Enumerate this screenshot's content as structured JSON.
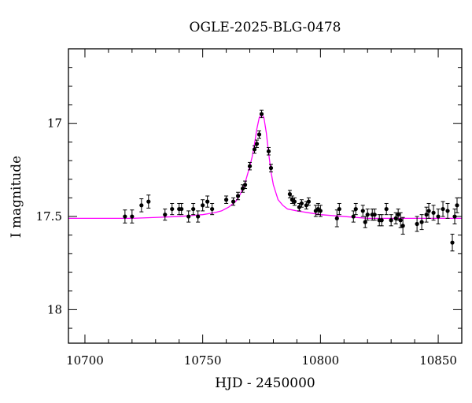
{
  "chart_data": {
    "type": "scatter",
    "title": "OGLE-2025-BLG-0478",
    "xlabel": "HJD - 2450000",
    "ylabel": "I magnitude",
    "xlim": [
      10693,
      10860
    ],
    "ylim": [
      18.18,
      16.6
    ],
    "y_inverted": true,
    "grid": false,
    "x_ticks": [
      10700,
      10750,
      10800,
      10850
    ],
    "y_ticks": [
      17,
      17.5,
      18
    ],
    "colors": {
      "points": "#000000",
      "model": "#ff00ff",
      "frame": "#000000"
    },
    "model": {
      "name": "",
      "x": [
        10693,
        10700,
        10710,
        10720,
        10730,
        10740,
        10745,
        10750,
        10755,
        10758,
        10761,
        10764,
        10766,
        10768,
        10770,
        10771,
        10772,
        10773,
        10774,
        10775,
        10776,
        10777,
        10778,
        10779,
        10780,
        10782,
        10784,
        10786,
        10790,
        10795,
        10800,
        10810,
        10820,
        10830,
        10840,
        10850,
        10860
      ],
      "y": [
        17.51,
        17.51,
        17.51,
        17.51,
        17.505,
        17.5,
        17.495,
        17.49,
        17.48,
        17.47,
        17.45,
        17.42,
        17.38,
        17.32,
        17.23,
        17.18,
        17.11,
        17.03,
        16.97,
        16.95,
        16.97,
        17.05,
        17.16,
        17.26,
        17.33,
        17.41,
        17.44,
        17.46,
        17.47,
        17.48,
        17.49,
        17.5,
        17.51,
        17.51,
        17.51,
        17.51,
        17.51
      ]
    },
    "series": [
      {
        "name": "",
        "x": [
          10717,
          10720,
          10724,
          10727,
          10734,
          10737,
          10740,
          10741,
          10744,
          10746,
          10748,
          10750,
          10752,
          10754,
          10760,
          10763,
          10765,
          10767,
          10768,
          10770,
          10772,
          10773,
          10774,
          10775,
          10778,
          10779,
          10787,
          10788,
          10789,
          10791,
          10792,
          10794,
          10795,
          10798,
          10799,
          10800,
          10807,
          10808,
          10814,
          10815,
          10818,
          10819,
          10820,
          10822,
          10823,
          10825,
          10826,
          10828,
          10830,
          10832,
          10833,
          10834,
          10835,
          10841,
          10843,
          10845,
          10846,
          10848,
          10850,
          10852,
          10854,
          10856,
          10857,
          10858
        ],
        "y": [
          17.5,
          17.5,
          17.44,
          17.42,
          17.49,
          17.46,
          17.46,
          17.46,
          17.5,
          17.46,
          17.5,
          17.44,
          17.42,
          17.46,
          17.41,
          17.42,
          17.39,
          17.35,
          17.33,
          17.23,
          17.14,
          17.11,
          17.06,
          16.95,
          17.15,
          17.24,
          17.38,
          17.41,
          17.42,
          17.45,
          17.43,
          17.44,
          17.42,
          17.47,
          17.46,
          17.47,
          17.51,
          17.46,
          17.5,
          17.46,
          17.47,
          17.53,
          17.49,
          17.49,
          17.49,
          17.52,
          17.52,
          17.46,
          17.52,
          17.51,
          17.49,
          17.52,
          17.55,
          17.54,
          17.53,
          17.49,
          17.47,
          17.48,
          17.5,
          17.46,
          17.47,
          17.64,
          17.5,
          17.44
        ],
        "err": [
          0.035,
          0.035,
          0.035,
          0.035,
          0.03,
          0.03,
          0.03,
          0.03,
          0.03,
          0.03,
          0.03,
          0.03,
          0.03,
          0.03,
          0.02,
          0.02,
          0.02,
          0.02,
          0.02,
          0.02,
          0.02,
          0.02,
          0.02,
          0.02,
          0.02,
          0.02,
          0.02,
          0.02,
          0.02,
          0.02,
          0.02,
          0.02,
          0.02,
          0.03,
          0.03,
          0.03,
          0.045,
          0.03,
          0.03,
          0.03,
          0.03,
          0.03,
          0.03,
          0.03,
          0.03,
          0.03,
          0.03,
          0.03,
          0.03,
          0.03,
          0.03,
          0.04,
          0.045,
          0.04,
          0.04,
          0.04,
          0.04,
          0.04,
          0.04,
          0.04,
          0.04,
          0.045,
          0.04,
          0.04
        ]
      }
    ]
  }
}
